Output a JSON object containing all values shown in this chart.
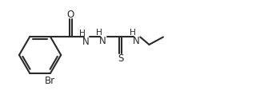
{
  "bg_color": "#ffffff",
  "line_color": "#2a2a2a",
  "text_color": "#2a2a2a",
  "line_width": 1.5,
  "font_size": 8.5,
  "fig_width": 3.2,
  "fig_height": 1.38,
  "dpi": 100,
  "xlim": [
    0,
    10
  ],
  "ylim": [
    0,
    4.3
  ]
}
